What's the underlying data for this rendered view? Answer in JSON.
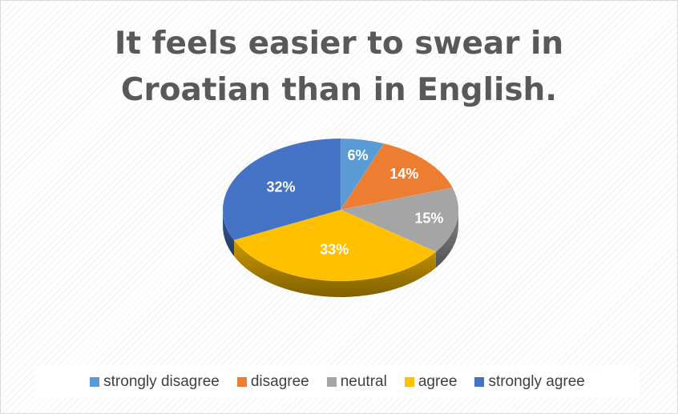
{
  "chart_data": {
    "type": "pie",
    "title": "It feels easier to swear in Croatian than in English.",
    "title_lines": [
      "It feels easier to swear in",
      "Croatian than in English."
    ],
    "categories": [
      "strongly disagree",
      "disagree",
      "neutral",
      "agree",
      "strongly agree"
    ],
    "values": [
      6,
      14,
      15,
      33,
      32
    ],
    "data_labels": [
      "6%",
      "14%",
      "15%",
      "33%",
      "32%"
    ],
    "colors": [
      "#5B9BD5",
      "#ED7D31",
      "#A5A5A5",
      "#FFC000",
      "#4472C4"
    ],
    "style": "3d",
    "legend_position": "bottom"
  }
}
